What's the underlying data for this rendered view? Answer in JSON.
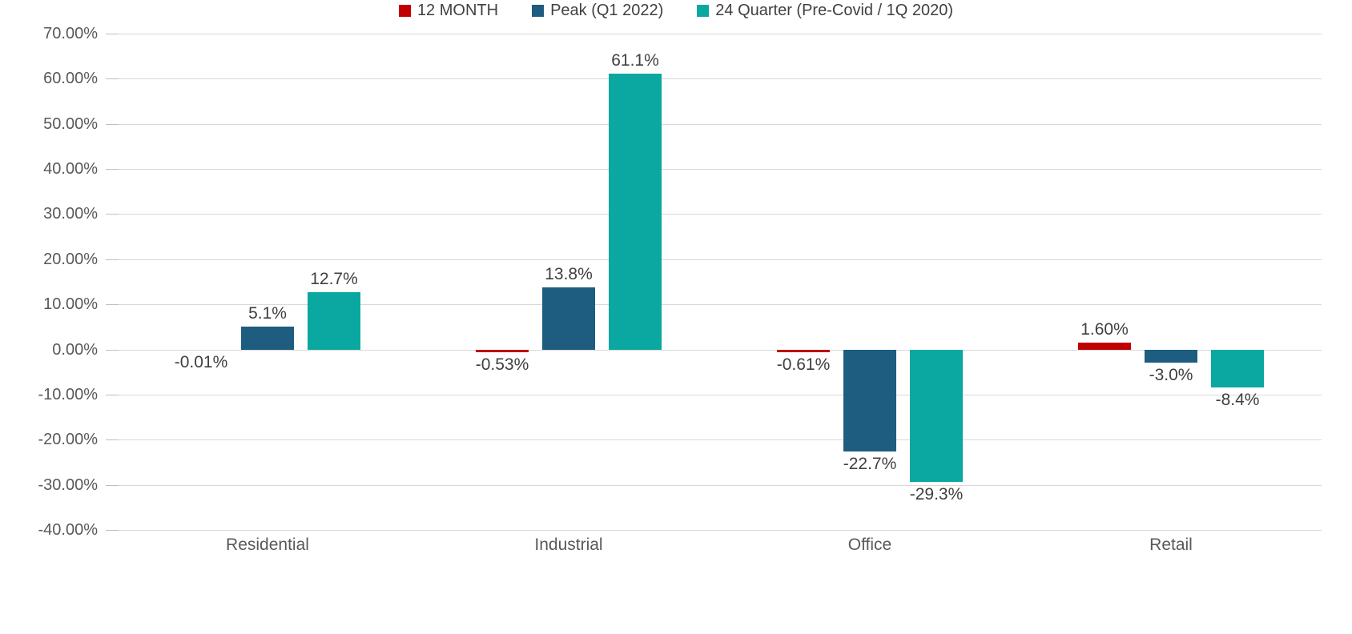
{
  "chart_data": {
    "type": "bar",
    "categories": [
      "Residential",
      "Industrial",
      "Office",
      "Retail"
    ],
    "series": [
      {
        "name": "12 MONTH",
        "color": "#c00000",
        "values": [
          -0.01,
          -0.53,
          -0.61,
          1.6
        ],
        "labels": [
          "-0.01%",
          "-0.53%",
          "-0.61%",
          "1.60%"
        ]
      },
      {
        "name": "Peak (Q1 2022)",
        "color": "#1e5c80",
        "values": [
          5.1,
          13.8,
          -22.7,
          -3.0
        ],
        "labels": [
          "5.1%",
          "13.8%",
          "-22.7%",
          "-3.0%"
        ]
      },
      {
        "name": "24 Quarter (Pre-Covid / 1Q 2020)",
        "color": "#0aa8a0",
        "values": [
          12.7,
          61.1,
          -29.3,
          -8.4
        ],
        "labels": [
          "12.7%",
          "61.1%",
          "-29.3%",
          "-8.4%"
        ]
      }
    ],
    "title": "",
    "xlabel": "",
    "ylabel": "",
    "ylim": [
      -40,
      70
    ],
    "ytick_step": 10,
    "ytick_labels": [
      "70.00%",
      "60.00%",
      "50.00%",
      "40.00%",
      "30.00%",
      "20.00%",
      "10.00%",
      "0.00%",
      "-10.00%",
      "-20.00%",
      "-30.00%",
      "-40.00%"
    ],
    "grid": true,
    "legend_position": "bottom"
  }
}
